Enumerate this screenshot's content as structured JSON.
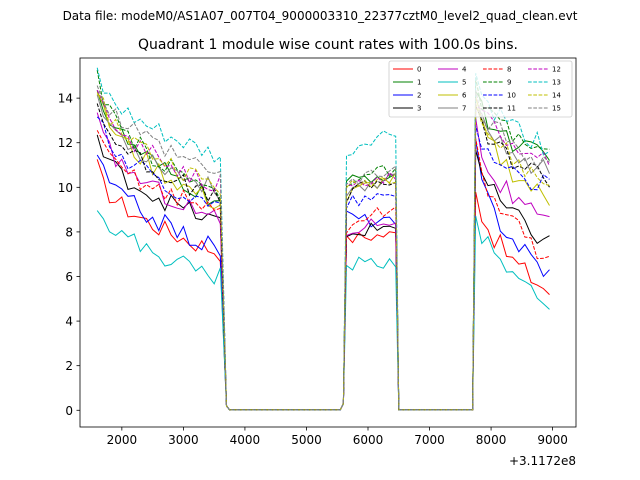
{
  "suptitle": "Data file: modeM0/AS1A07_007T04_9000003310_22377cztM0_level2_quad_clean.evt",
  "chart_data": {
    "type": "line",
    "title": "Quadrant 1 module wise count rates with 100.0s bins.",
    "xlabel": "",
    "ylabel": "",
    "x_offset_label": "+3.1172e8",
    "xlim": [
      1320,
      9380
    ],
    "ylim": [
      -0.75,
      15.8
    ],
    "xticks": [
      2000,
      3000,
      4000,
      5000,
      6000,
      7000,
      8000,
      9000
    ],
    "yticks": [
      0,
      2,
      4,
      6,
      8,
      10,
      12,
      14
    ],
    "grid": false,
    "legend": {
      "location": "upper right",
      "columns": 4
    },
    "segments": [
      {
        "x_start": 1600,
        "x_end": 3600
      },
      {
        "x_start": 5650,
        "x_end": 6450
      },
      {
        "x_start": 7750,
        "x_end": 9000
      }
    ],
    "series": [
      {
        "name": "0",
        "color": "#ff0000",
        "dash": "solid",
        "a": [
          10.9,
          7.1
        ],
        "b": [
          7.6,
          7.9
        ],
        "c": [
          10.2,
          5.2
        ]
      },
      {
        "name": "1",
        "color": "#008000",
        "dash": "solid",
        "a": [
          14.7,
          9.3
        ],
        "b": [
          10.1,
          10.6
        ],
        "c": [
          14.3,
          11.1
        ]
      },
      {
        "name": "2",
        "color": "#0000ff",
        "dash": "solid",
        "a": [
          11.6,
          7.2
        ],
        "b": [
          8.8,
          8.4
        ],
        "c": [
          11.7,
          6.0
        ]
      },
      {
        "name": "3",
        "color": "#000000",
        "dash": "solid",
        "a": [
          12.3,
          8.4
        ],
        "b": [
          7.7,
          8.3
        ],
        "c": [
          11.8,
          7.4
        ]
      },
      {
        "name": "4",
        "color": "#bf00bf",
        "dash": "solid",
        "a": [
          13.1,
          8.5
        ],
        "b": [
          7.8,
          8.6
        ],
        "c": [
          12.8,
          8.1
        ]
      },
      {
        "name": "5",
        "color": "#00bfbf",
        "dash": "solid",
        "a": [
          9.4,
          6.0
        ],
        "b": [
          6.5,
          6.7
        ],
        "c": [
          9.0,
          4.8
        ]
      },
      {
        "name": "6",
        "color": "#bfbf00",
        "dash": "solid",
        "a": [
          14.5,
          9.2
        ],
        "b": [
          9.4,
          10.4
        ],
        "c": [
          13.9,
          9.3
        ]
      },
      {
        "name": "7",
        "color": "#808080",
        "dash": "solid",
        "a": [
          14.2,
          9.8
        ],
        "b": [
          9.7,
          10.4
        ],
        "c": [
          14.0,
          10.6
        ]
      },
      {
        "name": "8",
        "color": "#ff0000",
        "dash": "dashed",
        "a": [
          12.4,
          8.9
        ],
        "b": [
          8.1,
          9.0
        ],
        "c": [
          12.2,
          6.7
        ]
      },
      {
        "name": "9",
        "color": "#008000",
        "dash": "dashed",
        "a": [
          14.9,
          9.7
        ],
        "b": [
          10.2,
          10.8
        ],
        "c": [
          14.5,
          11.4
        ]
      },
      {
        "name": "10",
        "color": "#0000ff",
        "dash": "dashed",
        "a": [
          13.5,
          9.0
        ],
        "b": [
          9.3,
          9.6
        ],
        "c": [
          12.9,
          9.9
        ]
      },
      {
        "name": "11",
        "color": "#000000",
        "dash": "dashed",
        "a": [
          13.9,
          9.4
        ],
        "b": [
          9.6,
          10.3
        ],
        "c": [
          13.4,
          10.4
        ]
      },
      {
        "name": "12",
        "color": "#bf00bf",
        "dash": "dashed",
        "a": [
          14.3,
          10.1
        ],
        "b": [
          9.9,
          10.5
        ],
        "c": [
          14.0,
          11.2
        ]
      },
      {
        "name": "13",
        "color": "#00bfbf",
        "dash": "dashed",
        "a": [
          15.1,
          11.3
        ],
        "b": [
          11.2,
          12.5
        ],
        "c": [
          15.0,
          11.7
        ]
      },
      {
        "name": "14",
        "color": "#bfbf00",
        "dash": "dashed",
        "a": [
          14.6,
          10.0
        ],
        "b": [
          9.8,
          10.5
        ],
        "c": [
          14.2,
          10.0
        ]
      },
      {
        "name": "15",
        "color": "#808080",
        "dash": "dashed",
        "a": [
          14.8,
          10.5
        ],
        "b": [
          10.0,
          10.7
        ],
        "c": [
          14.4,
          10.9
        ]
      }
    ]
  }
}
